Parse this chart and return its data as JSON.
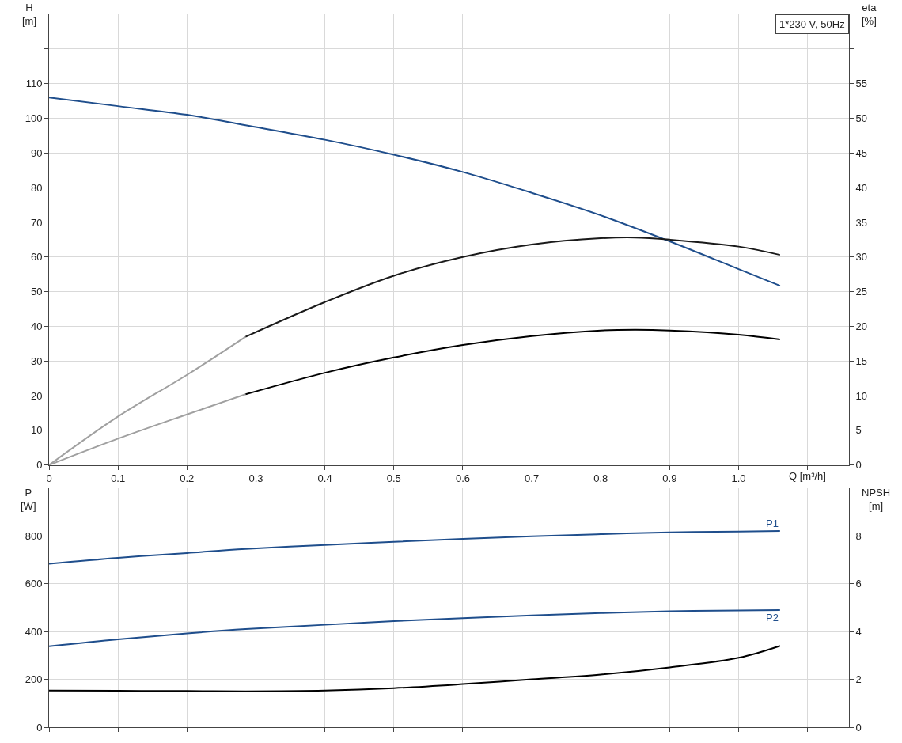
{
  "chart_data": [
    {
      "type": "line",
      "title": "1*230 V, 50Hz",
      "xlabel": "Q [m³/h]",
      "ylabel": "H [m]",
      "y2label": "eta [%]",
      "xlim": [
        0,
        1.16
      ],
      "xticks": [
        0,
        0.1,
        0.2,
        0.3,
        0.4,
        0.5,
        0.6,
        0.7,
        0.8,
        0.9,
        {
          "value": 1.0,
          "label": "1.0"
        },
        {
          "value": 1.1,
          "label": null
        }
      ],
      "ylim": [
        0,
        130
      ],
      "yticks": [
        0,
        10,
        20,
        30,
        40,
        50,
        60,
        70,
        80,
        90,
        100,
        110,
        {
          "value": 120,
          "label": null
        }
      ],
      "y2lim": [
        0,
        65
      ],
      "y2ticks": [
        0,
        5,
        10,
        15,
        20,
        25,
        30,
        35,
        40,
        45,
        50,
        55,
        {
          "value": 60,
          "label": null
        }
      ],
      "grid": true,
      "series": [
        {
          "color": "#1f4e8c",
          "x": [
            0,
            0.1,
            0.2,
            0.285,
            0.4,
            0.5,
            0.6,
            0.7,
            0.8,
            0.9,
            1.0,
            1.06
          ],
          "values": [
            106,
            103.5,
            101,
            98,
            93.8,
            89.5,
            84.5,
            78.5,
            72,
            64.5,
            56.5,
            51.7
          ]
        },
        {
          "color": "#a0a0a0",
          "axis": "y2",
          "x": [
            0,
            0.1,
            0.2,
            0.285
          ],
          "values": [
            0,
            7,
            13,
            18.5
          ]
        },
        {
          "color": "#1a1a1a",
          "axis": "y2",
          "x": [
            0.285,
            0.4,
            0.5,
            0.6,
            0.7,
            0.8,
            0.85,
            0.9,
            1.0,
            1.06
          ],
          "values": [
            18.5,
            23.5,
            27.3,
            30,
            31.8,
            32.7,
            32.8,
            32.5,
            31.5,
            30.3
          ]
        },
        {
          "color": "#a0a0a0",
          "axis": "y2",
          "x": [
            0,
            0.1,
            0.2,
            0.285
          ],
          "values": [
            0,
            3.8,
            7.3,
            10.2
          ]
        },
        {
          "color": "#000000",
          "axis": "y2",
          "x": [
            0.285,
            0.4,
            0.5,
            0.6,
            0.7,
            0.8,
            0.85,
            0.9,
            1.0,
            1.06
          ],
          "values": [
            10.2,
            13.3,
            15.5,
            17.3,
            18.6,
            19.4,
            19.5,
            19.4,
            18.8,
            18.1
          ]
        }
      ]
    },
    {
      "type": "line",
      "ylabel": "P [W]",
      "y2label": "NPSH [m]",
      "tick_labels": "y",
      "xlim": [
        0,
        1.16
      ],
      "xticks": [
        {
          "value": 0,
          "label": null
        },
        {
          "value": 0.1,
          "label": null
        },
        {
          "value": 0.2,
          "label": null
        },
        {
          "value": 0.3,
          "label": null
        },
        {
          "value": 0.4,
          "label": null
        },
        {
          "value": 0.5,
          "label": null
        },
        {
          "value": 0.6,
          "label": null
        },
        {
          "value": 0.7,
          "label": null
        },
        {
          "value": 0.8,
          "label": null
        },
        {
          "value": 0.9,
          "label": null
        },
        {
          "value": 1.0,
          "label": null
        },
        {
          "value": 1.1,
          "label": null
        }
      ],
      "ylim": [
        0,
        1000
      ],
      "yticks": [
        0,
        200,
        400,
        600,
        800
      ],
      "y2lim": [
        0,
        10
      ],
      "y2ticks": [
        0,
        2,
        4,
        6,
        8
      ],
      "grid": true,
      "series": [
        {
          "name": "P1",
          "color": "#1f4e8c",
          "x": [
            0,
            0.1,
            0.2,
            0.285,
            0.4,
            0.5,
            0.6,
            0.7,
            0.8,
            0.9,
            1.0,
            1.06
          ],
          "values": [
            683,
            708,
            728,
            745,
            762,
            775,
            787,
            798,
            807,
            815,
            818,
            820
          ]
        },
        {
          "name": "P2",
          "color": "#1f4e8c",
          "x": [
            0,
            0.1,
            0.2,
            0.285,
            0.4,
            0.5,
            0.6,
            0.7,
            0.8,
            0.9,
            1.0,
            1.06
          ],
          "values": [
            338,
            367,
            392,
            410,
            428,
            443,
            456,
            467,
            477,
            485,
            488,
            490
          ]
        },
        {
          "color": "#000000",
          "axis": "y2",
          "x": [
            0,
            0.1,
            0.2,
            0.285,
            0.4,
            0.5,
            0.6,
            0.7,
            0.8,
            0.9,
            1.0,
            1.06
          ],
          "values": [
            1.53,
            1.52,
            1.51,
            1.5,
            1.53,
            1.63,
            1.8,
            2.0,
            2.2,
            2.5,
            2.9,
            3.4
          ]
        }
      ]
    }
  ]
}
